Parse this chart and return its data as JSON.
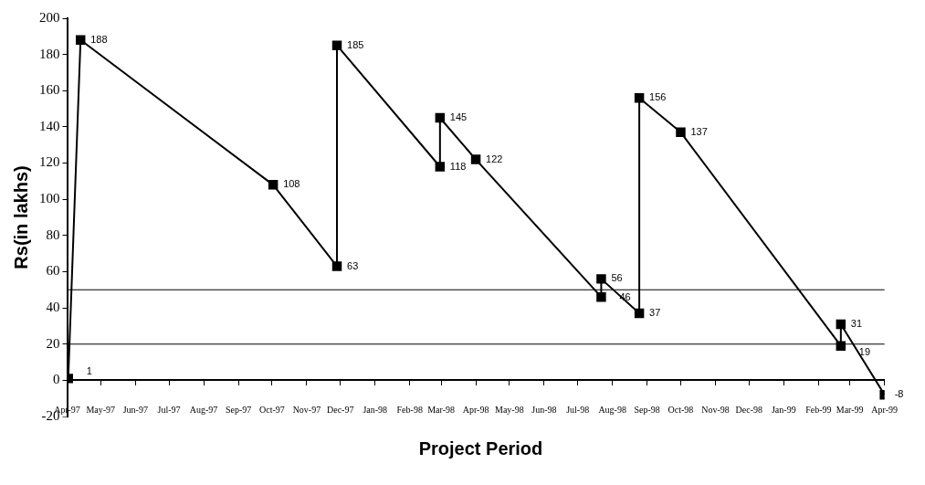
{
  "chart_data": {
    "type": "line",
    "xlabel": "Project Period",
    "ylabel": "Rs(in lakhs)",
    "x": [
      "1997-04-02",
      "1997-04-13",
      "1997-10-02",
      "1997-11-28",
      "1997-11-28",
      "1998-02-28",
      "1998-02-28",
      "1998-04-01",
      "1998-07-22",
      "1998-07-22",
      "1998-08-25",
      "1998-08-25",
      "1998-10-01",
      "1999-02-21",
      "1999-02-21",
      "1999-04-01"
    ],
    "series": [
      {
        "color": "#000000",
        "values": [
          1,
          188,
          108,
          63,
          185,
          118,
          145,
          122,
          46,
          56,
          37,
          156,
          137,
          19,
          31,
          -8
        ]
      }
    ],
    "xlim": [
      "1997-04",
      "1999-04"
    ],
    "xticks": [
      {
        "value": "1997-04",
        "label": "Apr-97"
      },
      {
        "value": "1997-05",
        "label": "May-97"
      },
      {
        "value": "1997-06",
        "label": "Jun-97"
      },
      {
        "value": "1997-07",
        "label": "Jul-97"
      },
      {
        "value": "1997-08",
        "label": "Aug-97"
      },
      {
        "value": "1997-09",
        "label": "Sep-97"
      },
      {
        "value": "1997-10",
        "label": "Oct-97"
      },
      {
        "value": "1997-11",
        "label": "Nov-97"
      },
      {
        "value": "1997-12",
        "label": "Dec-97"
      },
      {
        "value": "1998-01",
        "label": "Jan-98"
      },
      {
        "value": "1998-02",
        "label": "Feb-98"
      },
      {
        "value": "1998-03",
        "label": "Mar-98"
      },
      {
        "value": "1998-04",
        "label": "Apr-98"
      },
      {
        "value": "1998-05",
        "label": "May-98"
      },
      {
        "value": "1998-06",
        "label": "Jun-98"
      },
      {
        "value": "1998-07",
        "label": "Jul-98"
      },
      {
        "value": "1998-08",
        "label": "Aug-98"
      },
      {
        "value": "1998-09",
        "label": "Sep-98"
      },
      {
        "value": "1998-10",
        "label": "Oct-98"
      },
      {
        "value": "1998-11",
        "label": "Nov-98"
      },
      {
        "value": "1998-12",
        "label": "Dec-98"
      },
      {
        "value": "1999-01",
        "label": "Jan-99"
      },
      {
        "value": "1999-02",
        "label": "Feb-99"
      },
      {
        "value": "1999-03",
        "label": "Mar-99"
      },
      {
        "value": "1999-04",
        "label": "Apr-99"
      }
    ],
    "ylim": [
      -20,
      200
    ],
    "yticks": [
      -20,
      0,
      20,
      40,
      60,
      80,
      100,
      120,
      140,
      160,
      180,
      200
    ],
    "ref_lines": [
      {
        "axis": "y",
        "value": 50,
        "color": "#000000"
      },
      {
        "axis": "y",
        "value": 20,
        "color": "#000000"
      }
    ],
    "grid": false,
    "legend": false,
    "marker": "square",
    "line_style": "solid",
    "data_labels": true
  }
}
